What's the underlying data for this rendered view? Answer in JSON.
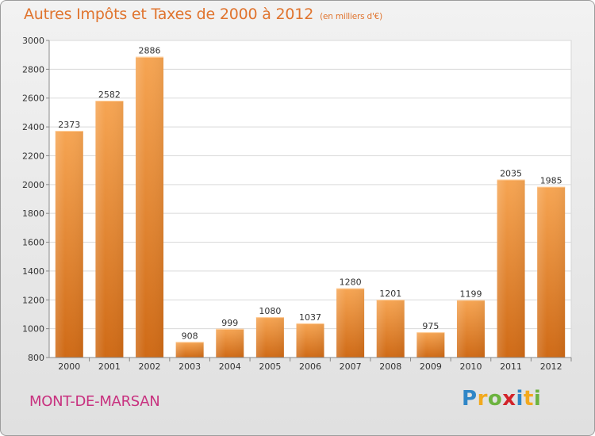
{
  "header": {
    "title": "Autres Impôts et Taxes de 2000 à 2012",
    "unit": "(en milliers d'€)"
  },
  "footer": {
    "city": "MONT-DE-MARSAN",
    "brand": "Proxiti"
  },
  "colors": {
    "title": "#e0742e",
    "city": "#c8317f",
    "bar_light": "#f6a553",
    "bar_dark": "#d06a17"
  },
  "chart_data": {
    "type": "bar",
    "title": "Autres Impôts et Taxes de 2000 à 2012",
    "subtitle": "(en milliers d'€)",
    "categories": [
      "2000",
      "2001",
      "2002",
      "2003",
      "2004",
      "2005",
      "2006",
      "2007",
      "2008",
      "2009",
      "2010",
      "2011",
      "2012"
    ],
    "values": [
      2373,
      2582,
      2886,
      908,
      999,
      1080,
      1037,
      1280,
      1201,
      975,
      1199,
      2035,
      1985
    ],
    "ylim": [
      800,
      3000
    ],
    "yticks": [
      800,
      1000,
      1200,
      1400,
      1600,
      1800,
      2000,
      2200,
      2400,
      2600,
      2800,
      3000
    ],
    "grid": true,
    "xlabel": "",
    "ylabel": ""
  }
}
